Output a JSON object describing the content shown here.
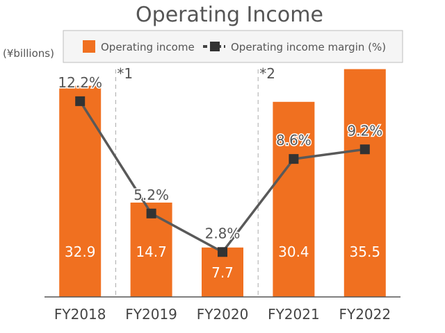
{
  "chart_data": {
    "type": "bar",
    "title": "Operating Income",
    "unit_label": "(¥billions)",
    "categories": [
      "FY2018",
      "FY2019",
      "FY2020",
      "FY2021",
      "FY2022"
    ],
    "series": [
      {
        "name": "Operating income",
        "kind": "bar",
        "values": [
          32.9,
          14.7,
          7.7,
          30.4,
          35.5
        ],
        "labels": [
          "32.9",
          "14.7",
          "7.7",
          "30.4",
          "35.5"
        ],
        "color": "#f07020"
      },
      {
        "name": "Operating income margin (%)",
        "kind": "line",
        "values": [
          12.2,
          5.2,
          2.8,
          8.6,
          9.2
        ],
        "labels": [
          "12.2%",
          "5.2%",
          "2.8%",
          "8.6%",
          "9.2%"
        ],
        "color": "#595959",
        "marker_color": "#333333"
      }
    ],
    "bar_ylim": [
      0,
      40
    ],
    "line_ylim": [
      0,
      16
    ],
    "annotations": [
      {
        "text": "*1",
        "between": [
          "FY2018",
          "FY2019"
        ]
      },
      {
        "text": "*2",
        "between": [
          "FY2020",
          "FY2021"
        ]
      }
    ],
    "grid": false,
    "legend_position": "top"
  }
}
